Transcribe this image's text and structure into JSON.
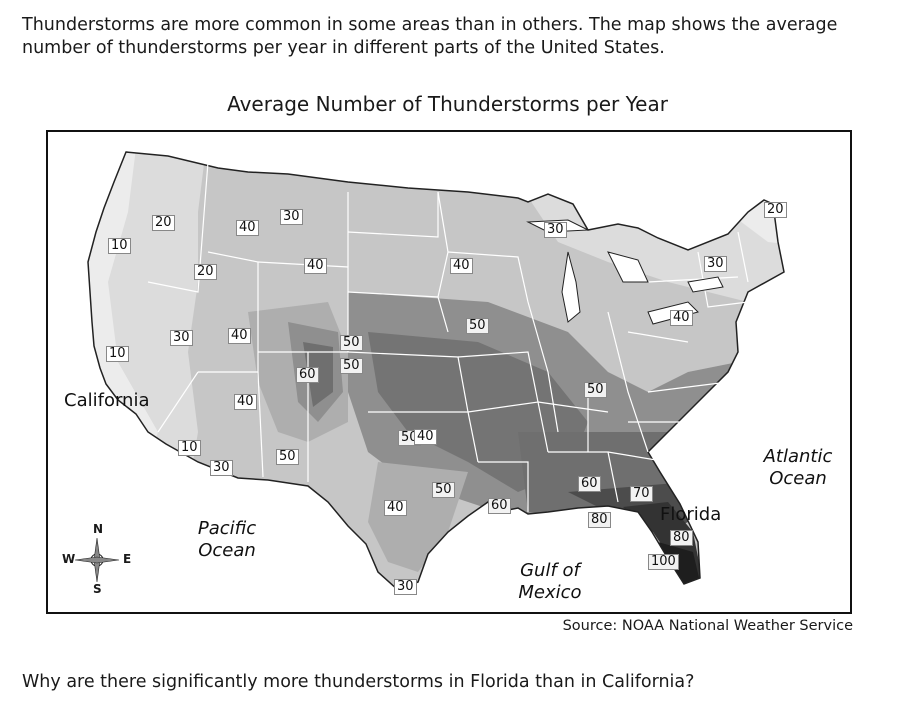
{
  "intro": {
    "line1": "Thunderstorms are more common in some areas than in others. The map shows the average",
    "line2": "number of thunderstorms per year in different parts of the United States."
  },
  "map": {
    "title": "Average Number of Thunderstorms per Year",
    "contour_labels": [
      {
        "value": "20"
      },
      {
        "value": "10"
      },
      {
        "value": "40"
      },
      {
        "value": "30"
      },
      {
        "value": "20"
      },
      {
        "value": "40"
      },
      {
        "value": "30"
      },
      {
        "value": "40"
      },
      {
        "value": "10"
      },
      {
        "value": "50"
      },
      {
        "value": "50"
      },
      {
        "value": "60"
      },
      {
        "value": "40"
      },
      {
        "value": "10"
      },
      {
        "value": "30"
      },
      {
        "value": "50"
      },
      {
        "value": "40"
      },
      {
        "value": "50"
      },
      {
        "value": "30"
      },
      {
        "value": "40"
      },
      {
        "value": "50"
      },
      {
        "value": "30"
      },
      {
        "value": "20"
      },
      {
        "value": "40"
      },
      {
        "value": "50"
      },
      {
        "value": "50"
      },
      {
        "value": "60"
      },
      {
        "value": "60"
      },
      {
        "value": "70"
      },
      {
        "value": "80"
      },
      {
        "value": "80"
      },
      {
        "value": "100"
      },
      {
        "value": "40"
      },
      {
        "value": "30"
      }
    ],
    "places": {
      "california": "California",
      "pacific": "Pacific\nOcean",
      "atlantic": "Atlantic\nOcean",
      "gulf": "Gulf of\nMexico",
      "florida": "Florida"
    },
    "compass": {
      "n": "N",
      "s": "S",
      "e": "E",
      "w": "W"
    },
    "colors": {
      "shade_10": "#ececec",
      "shade_20": "#dcdcdc",
      "shade_30": "#c6c6c6",
      "shade_40": "#aeaeae",
      "shade_50": "#8f8f8f",
      "shade_60": "#6f6f6f",
      "shade_80": "#4c4c4c",
      "shade_100": "#262626"
    }
  },
  "source": "Source: NOAA National Weather Service",
  "question": "Why are there significantly more thunderstorms in Florida than in California?"
}
